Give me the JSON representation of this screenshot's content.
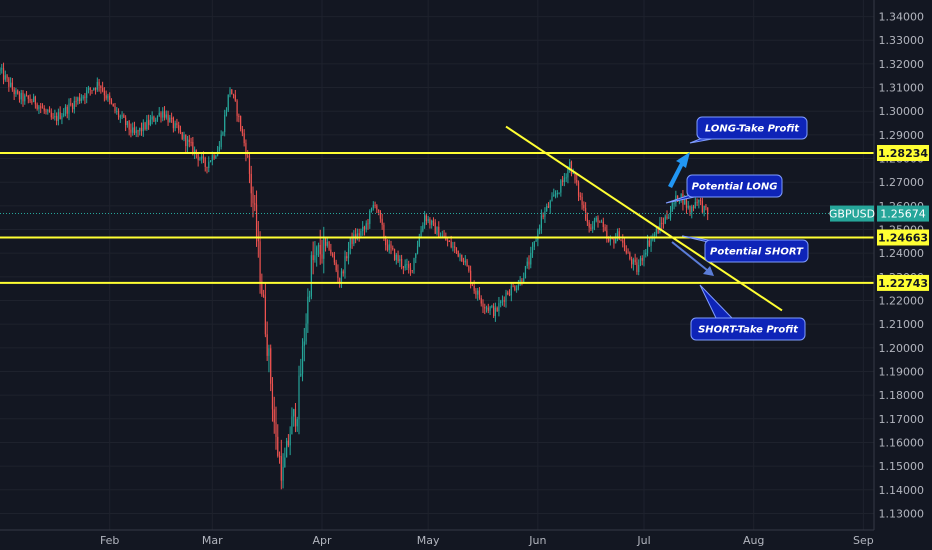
{
  "chart_data": {
    "type": "candlestick",
    "symbol": "GBPUSD",
    "last_price": "1.25674",
    "ylim": [
      1.123,
      1.347
    ],
    "y_ticks": [
      "1.13000",
      "1.14000",
      "1.15000",
      "1.16000",
      "1.17000",
      "1.18000",
      "1.19000",
      "1.20000",
      "1.21000",
      "1.22000",
      "1.23000",
      "1.24000",
      "1.25000",
      "1.26000",
      "1.27000",
      "1.28000",
      "1.29000",
      "1.30000",
      "1.31000",
      "1.32000",
      "1.33000",
      "1.34000"
    ],
    "x_range_days": [
      0,
      247
    ],
    "x_ticks": [
      {
        "label": "Feb",
        "day": 31
      },
      {
        "label": "Mar",
        "day": 60
      },
      {
        "label": "Apr",
        "day": 91
      },
      {
        "label": "May",
        "day": 121
      },
      {
        "label": "Jun",
        "day": 152
      },
      {
        "label": "Jul",
        "day": 182
      },
      {
        "label": "Aug",
        "day": 213
      },
      {
        "label": "Sep",
        "day": 244
      }
    ],
    "price_path": [
      [
        0,
        1.317
      ],
      [
        5,
        1.306
      ],
      [
        10,
        1.304
      ],
      [
        15,
        1.296
      ],
      [
        22,
        1.305
      ],
      [
        28,
        1.312
      ],
      [
        32,
        1.301
      ],
      [
        38,
        1.29
      ],
      [
        42,
        1.295
      ],
      [
        46,
        1.3
      ],
      [
        50,
        1.292
      ],
      [
        55,
        1.283
      ],
      [
        58,
        1.277
      ],
      [
        62,
        1.285
      ],
      [
        65,
        1.31
      ],
      [
        67,
        1.3
      ],
      [
        70,
        1.28
      ],
      [
        72,
        1.255
      ],
      [
        74,
        1.225
      ],
      [
        76,
        1.195
      ],
      [
        78,
        1.16
      ],
      [
        80,
        1.146
      ],
      [
        82,
        1.165
      ],
      [
        84,
        1.175
      ],
      [
        86,
        1.205
      ],
      [
        88,
        1.235
      ],
      [
        90,
        1.24
      ],
      [
        93,
        1.243
      ],
      [
        96,
        1.228
      ],
      [
        99,
        1.245
      ],
      [
        103,
        1.25
      ],
      [
        106,
        1.262
      ],
      [
        109,
        1.244
      ],
      [
        112,
        1.238
      ],
      [
        116,
        1.232
      ],
      [
        120,
        1.256
      ],
      [
        123,
        1.25
      ],
      [
        127,
        1.244
      ],
      [
        131,
        1.238
      ],
      [
        134,
        1.225
      ],
      [
        137,
        1.218
      ],
      [
        140,
        1.215
      ],
      [
        143,
        1.223
      ],
      [
        147,
        1.228
      ],
      [
        150,
        1.238
      ],
      [
        153,
        1.255
      ],
      [
        156,
        1.262
      ],
      [
        159,
        1.27
      ],
      [
        161,
        1.278
      ],
      [
        164,
        1.263
      ],
      [
        167,
        1.25
      ],
      [
        169,
        1.255
      ],
      [
        172,
        1.244
      ],
      [
        175,
        1.248
      ],
      [
        177,
        1.24
      ],
      [
        180,
        1.233
      ],
      [
        183,
        1.244
      ],
      [
        186,
        1.25
      ],
      [
        189,
        1.257
      ],
      [
        192,
        1.265
      ],
      [
        195,
        1.258
      ],
      [
        197,
        1.263
      ],
      [
        200,
        1.256
      ]
    ],
    "horizontal_levels": [
      {
        "price": 1.28234,
        "label": "1.28234"
      },
      {
        "price": 1.24663,
        "label": "1.24663"
      },
      {
        "price": 1.22743,
        "label": "1.22743"
      }
    ],
    "trendline": {
      "start": {
        "day": 143,
        "price": 1.2935
      },
      "end": {
        "day": 221,
        "price": 1.2158
      }
    },
    "annotations": [
      {
        "text": "LONG-Take Profit",
        "type": "long-target"
      },
      {
        "text": "Potential LONG",
        "type": "long-entry"
      },
      {
        "text": "Potential SHORT",
        "type": "short-entry"
      },
      {
        "text": "SHORT-Take Profit",
        "type": "short-target"
      }
    ],
    "colors": {
      "up": "#26a69a",
      "down": "#ef5350",
      "level": "#ffff33",
      "callout_fill": "#0e24b8",
      "callout_stroke": "#7f9cff",
      "symbol_tag": "#26a69a",
      "background": "#131722"
    }
  }
}
